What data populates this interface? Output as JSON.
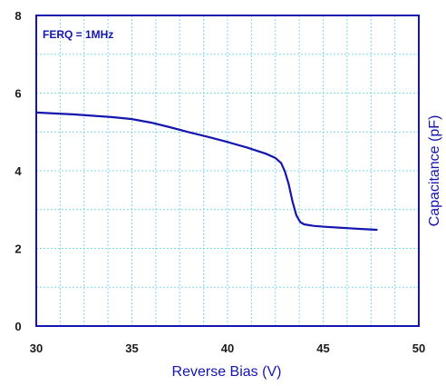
{
  "chart_data": {
    "type": "line",
    "title": "",
    "xlabel": "Reverse Bias (V)",
    "ylabel": "Capacitance (pF)",
    "xlim": [
      30,
      50
    ],
    "ylim": [
      0,
      8
    ],
    "x_ticks": [
      30,
      35,
      40,
      45,
      50
    ],
    "y_ticks": [
      0,
      2,
      4,
      6,
      8
    ],
    "x_tick_labels": [
      "30",
      "35",
      "40",
      "45",
      "50"
    ],
    "y_tick_labels": [
      "0",
      "2",
      "4",
      "6",
      "8"
    ],
    "grid": true,
    "grid_style": "dotted, minor every 1.25 V and 1 pF",
    "annotation": "FERQ = 1MHz",
    "series": [
      {
        "x": [
          30,
          32,
          34,
          35,
          36,
          37,
          38,
          39,
          40,
          41,
          42,
          42.5,
          42.8,
          43.0,
          43.2,
          43.4,
          43.6,
          43.8,
          44.0,
          44.5,
          45,
          46,
          47,
          47.8
        ],
        "y": [
          5.5,
          5.45,
          5.38,
          5.33,
          5.24,
          5.12,
          4.99,
          4.87,
          4.74,
          4.6,
          4.44,
          4.33,
          4.2,
          3.98,
          3.65,
          3.2,
          2.85,
          2.68,
          2.62,
          2.58,
          2.56,
          2.53,
          2.5,
          2.48
        ]
      }
    ]
  },
  "colors": {
    "axis": "#1515b0",
    "grid": "#7fd6f0",
    "line": "#1515b0",
    "tick_text": "#1a1a1a"
  }
}
